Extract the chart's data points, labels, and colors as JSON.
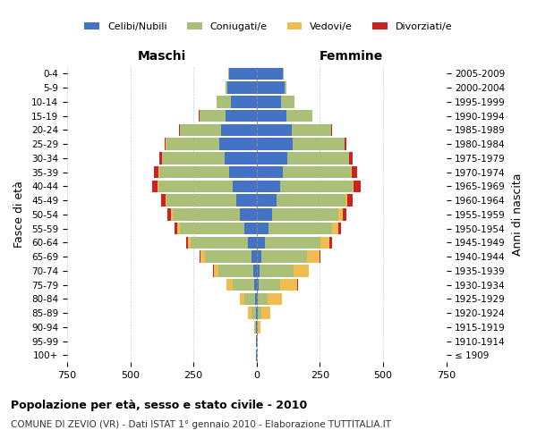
{
  "age_groups": [
    "100+",
    "95-99",
    "90-94",
    "85-89",
    "80-84",
    "75-79",
    "70-74",
    "65-69",
    "60-64",
    "55-59",
    "50-54",
    "45-49",
    "40-44",
    "35-39",
    "30-34",
    "25-29",
    "20-24",
    "15-19",
    "10-14",
    "5-9",
    "0-4"
  ],
  "birth_years": [
    "≤ 1909",
    "1910-1914",
    "1915-1919",
    "1920-1924",
    "1925-1929",
    "1930-1934",
    "1935-1939",
    "1940-1944",
    "1945-1949",
    "1950-1954",
    "1955-1959",
    "1960-1964",
    "1965-1969",
    "1970-1974",
    "1975-1979",
    "1980-1984",
    "1985-1989",
    "1990-1994",
    "1995-1999",
    "2000-2004",
    "2005-2009"
  ],
  "male_celibi": [
    1,
    1,
    2,
    3,
    5,
    8,
    14,
    20,
    35,
    50,
    65,
    82,
    95,
    110,
    125,
    148,
    142,
    122,
    102,
    115,
    108
  ],
  "male_coniugati": [
    0,
    1,
    5,
    18,
    42,
    88,
    138,
    185,
    225,
    255,
    268,
    275,
    295,
    275,
    248,
    210,
    162,
    105,
    55,
    8,
    4
  ],
  "male_vedovi": [
    0,
    1,
    3,
    12,
    18,
    22,
    18,
    16,
    13,
    9,
    7,
    4,
    3,
    2,
    2,
    1,
    0,
    0,
    0,
    0,
    0
  ],
  "male_divorziati": [
    0,
    0,
    0,
    0,
    1,
    1,
    2,
    4,
    7,
    10,
    13,
    18,
    22,
    18,
    10,
    6,
    3,
    1,
    0,
    0,
    0
  ],
  "female_celibi": [
    1,
    1,
    2,
    3,
    4,
    8,
    13,
    19,
    33,
    48,
    62,
    80,
    92,
    105,
    122,
    142,
    138,
    118,
    98,
    112,
    105
  ],
  "female_coniugati": [
    0,
    1,
    4,
    16,
    40,
    85,
    132,
    180,
    220,
    250,
    262,
    270,
    288,
    268,
    242,
    205,
    158,
    102,
    52,
    7,
    3
  ],
  "female_vedovi": [
    1,
    4,
    10,
    35,
    55,
    68,
    60,
    50,
    36,
    25,
    16,
    9,
    5,
    3,
    2,
    1,
    0,
    0,
    0,
    0,
    0
  ],
  "female_divorziati": [
    0,
    0,
    0,
    0,
    1,
    1,
    3,
    5,
    9,
    12,
    16,
    20,
    25,
    20,
    12,
    8,
    4,
    2,
    1,
    0,
    0
  ],
  "color_celibi": "#4472C4",
  "color_coniugati": "#AABF77",
  "color_vedovi": "#F0BE50",
  "color_divorziati": "#CC2222",
  "xlim": 750,
  "title": "Popolazione per età, sesso e stato civile - 2010",
  "subtitle": "COMUNE DI ZEVIO (VR) - Dati ISTAT 1° gennaio 2010 - Elaborazione TUTTITALIA.IT",
  "ylabel_left": "Fasce di età",
  "ylabel_right": "Anni di nascita",
  "xlabel_maschi": "Maschi",
  "xlabel_femmine": "Femmine",
  "bg_color": "#FFFFFF",
  "grid_color": "#CCCCCC",
  "legend_labels": [
    "Celibi/Nubili",
    "Coniugati/e",
    "Vedovi/e",
    "Divorziati/e"
  ]
}
